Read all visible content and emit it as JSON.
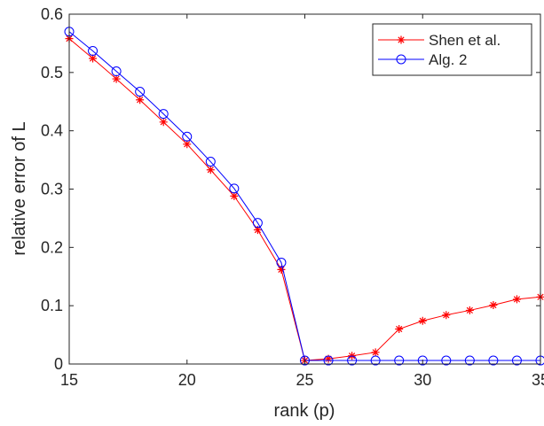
{
  "chart_data": {
    "type": "line",
    "xlabel": "rank (p)",
    "ylabel": "relative error of L",
    "xlim": [
      15,
      35
    ],
    "ylim": [
      0,
      0.6
    ],
    "xticks": [
      "15",
      "20",
      "25",
      "30",
      "35"
    ],
    "yticks": [
      "0",
      "0.1",
      "0.2",
      "0.3",
      "0.4",
      "0.5",
      "0.6"
    ],
    "grid": false,
    "legend_position": "top-right",
    "x": [
      15,
      16,
      17,
      18,
      19,
      20,
      21,
      22,
      23,
      24,
      25,
      26,
      27,
      28,
      29,
      30,
      31,
      32,
      33,
      34,
      35
    ],
    "series": [
      {
        "name": "Shen et al.",
        "color": "#ff0000",
        "marker": "asterisk",
        "values": [
          0.558,
          0.524,
          0.489,
          0.453,
          0.415,
          0.377,
          0.333,
          0.288,
          0.23,
          0.162,
          0.006,
          0.009,
          0.014,
          0.02,
          0.06,
          0.074,
          0.084,
          0.092,
          0.101,
          0.111,
          0.115
        ]
      },
      {
        "name": "Alg. 2",
        "color": "#0000ff",
        "marker": "circle",
        "values": [
          0.57,
          0.537,
          0.502,
          0.467,
          0.429,
          0.39,
          0.347,
          0.301,
          0.242,
          0.174,
          0.006,
          0.006,
          0.006,
          0.006,
          0.006,
          0.006,
          0.006,
          0.006,
          0.006,
          0.006,
          0.006
        ]
      }
    ]
  }
}
